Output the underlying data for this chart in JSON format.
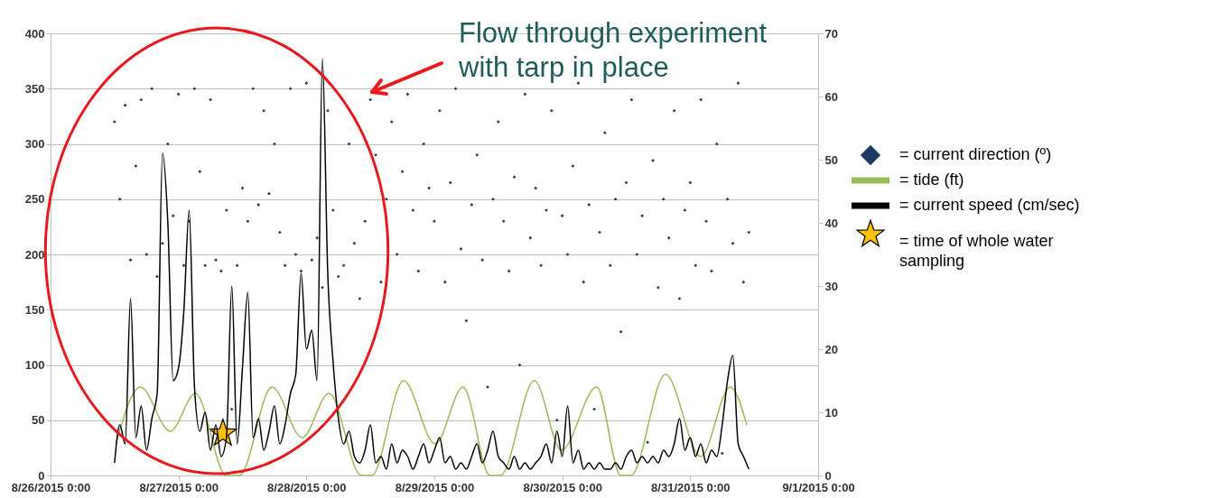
{
  "chart_data": {
    "type": "scatter",
    "annotations": [
      "Flow through experiment with tarp in place"
    ],
    "x": [
      "2015-08-26T12:00",
      "2015-08-26T13:00",
      "2015-08-26T14:00",
      "2015-08-26T15:00",
      "2015-08-26T16:00",
      "2015-08-26T17:00",
      "2015-08-26T18:00",
      "2015-08-26T19:00",
      "2015-08-26T20:00",
      "2015-08-26T21:00",
      "2015-08-26T22:00",
      "2015-08-26T23:00",
      "2015-08-27T00:00",
      "2015-08-27T01:00",
      "2015-08-27T02:00",
      "2015-08-27T03:00",
      "2015-08-27T04:00",
      "2015-08-27T05:00",
      "2015-08-27T06:00",
      "2015-08-27T07:00",
      "2015-08-27T08:00",
      "2015-08-27T09:00",
      "2015-08-27T10:00",
      "2015-08-27T11:00",
      "2015-08-27T12:00",
      "2015-08-27T13:00",
      "2015-08-27T14:00",
      "2015-08-27T15:00",
      "2015-08-27T16:00",
      "2015-08-27T17:00",
      "2015-08-27T18:00",
      "2015-08-27T19:00",
      "2015-08-27T20:00",
      "2015-08-27T21:00",
      "2015-08-27T22:00",
      "2015-08-27T23:00",
      "2015-08-28T00:00",
      "2015-08-28T01:00",
      "2015-08-28T02:00",
      "2015-08-28T03:00",
      "2015-08-28T04:00",
      "2015-08-28T05:00",
      "2015-08-28T06:00",
      "2015-08-28T07:00",
      "2015-08-28T08:00",
      "2015-08-28T09:00",
      "2015-08-28T10:00",
      "2015-08-28T11:00",
      "2015-08-28T12:00",
      "2015-08-28T13:00",
      "2015-08-28T14:00",
      "2015-08-28T15:00",
      "2015-08-28T16:00",
      "2015-08-28T17:00",
      "2015-08-28T18:00",
      "2015-08-28T19:00",
      "2015-08-28T20:00",
      "2015-08-28T21:00",
      "2015-08-28T22:00",
      "2015-08-28T23:00",
      "2015-08-29T00:00",
      "2015-08-29T01:00",
      "2015-08-29T02:00",
      "2015-08-29T03:00",
      "2015-08-29T04:00",
      "2015-08-29T05:00",
      "2015-08-29T06:00",
      "2015-08-29T07:00",
      "2015-08-29T08:00",
      "2015-08-29T09:00",
      "2015-08-29T10:00",
      "2015-08-29T11:00",
      "2015-08-29T12:00",
      "2015-08-29T13:00",
      "2015-08-29T14:00",
      "2015-08-29T15:00",
      "2015-08-29T16:00",
      "2015-08-29T17:00",
      "2015-08-29T18:00",
      "2015-08-29T19:00",
      "2015-08-29T20:00",
      "2015-08-29T21:00",
      "2015-08-29T22:00",
      "2015-08-29T23:00",
      "2015-08-30T00:00",
      "2015-08-30T01:00",
      "2015-08-30T02:00",
      "2015-08-30T03:00",
      "2015-08-30T04:00",
      "2015-08-30T05:00",
      "2015-08-30T06:00",
      "2015-08-30T07:00",
      "2015-08-30T08:00",
      "2015-08-30T09:00",
      "2015-08-30T10:00",
      "2015-08-30T11:00",
      "2015-08-30T12:00",
      "2015-08-30T13:00",
      "2015-08-30T14:00",
      "2015-08-30T15:00",
      "2015-08-30T16:00",
      "2015-08-30T17:00",
      "2015-08-30T18:00",
      "2015-08-30T19:00",
      "2015-08-30T20:00",
      "2015-08-30T21:00",
      "2015-08-30T22:00",
      "2015-08-30T23:00",
      "2015-08-31T00:00",
      "2015-08-31T01:00",
      "2015-08-31T02:00",
      "2015-08-31T03:00",
      "2015-08-31T04:00",
      "2015-08-31T05:00",
      "2015-08-31T06:00",
      "2015-08-31T07:00",
      "2015-08-31T08:00",
      "2015-08-31T09:00",
      "2015-08-31T10:00",
      "2015-08-31T11:00"
    ],
    "series": [
      {
        "name": "= current direction (º)",
        "type": "scatter",
        "marker": "diamond",
        "color": "#1f3864",
        "values": [
          320,
          250,
          335,
          195,
          280,
          340,
          200,
          350,
          180,
          210,
          300,
          235,
          345,
          190,
          230,
          350,
          275,
          190,
          340,
          195,
          185,
          240,
          60,
          190,
          260,
          230,
          350,
          245,
          330,
          255,
          300,
          220,
          190,
          350,
          200,
          185,
          355,
          195,
          215,
          170,
          330,
          240,
          180,
          190,
          300,
          210,
          160,
          230,
          340,
          290,
          175,
          250,
          320,
          200,
          275,
          345,
          240,
          185,
          300,
          260,
          230,
          330,
          175,
          265,
          350,
          205,
          140,
          245,
          290,
          195,
          80,
          250,
          320,
          230,
          185,
          270,
          100,
          345,
          215,
          260,
          190,
          240,
          330,
          50,
          235,
          200,
          280,
          355,
          175,
          245,
          60,
          220,
          310,
          190,
          250,
          130,
          265,
          340,
          200,
          235,
          30,
          285,
          170,
          250,
          215,
          330,
          160,
          240,
          265,
          190,
          340,
          230,
          185,
          300,
          20,
          250,
          210,
          355,
          175,
          220
        ]
      },
      {
        "name": "= tide (ft)",
        "type": "line",
        "axis": "y2",
        "color": "#9bbb59",
        "x": [
          "2015-08-26T12:15",
          "2015-08-26T16:50",
          "2015-08-26T22:28",
          "2015-08-27T03:10",
          "2015-08-27T08:58",
          "2015-08-27T11:26",
          "2015-08-27T17:33",
          "2015-08-27T23:11",
          "2015-08-28T04:15",
          "2015-08-28T10:17",
          "2015-08-28T12:15",
          "2015-08-28T18:13",
          "2015-08-29T00:10",
          "2015-08-29T05:23",
          "2015-08-29T10:26",
          "2015-08-29T12:25",
          "2015-08-29T18:46",
          "2015-08-29T23:50",
          "2015-08-30T06:27",
          "2015-08-30T10:57",
          "2015-08-30T12:53",
          "2015-08-30T19:22",
          "2015-08-31T01:58",
          "2015-08-31T07:31",
          "2015-08-31T10:37"
        ],
        "values": [
          5,
          14,
          7,
          13,
          0,
          0,
          14,
          6,
          13,
          0,
          0,
          15,
          5,
          14,
          0,
          0,
          15,
          4,
          14,
          0,
          0,
          16,
          3,
          14,
          8
        ]
      },
      {
        "name": "= current speed (cm/sec)",
        "type": "line",
        "axis": "y2",
        "color": "#000000",
        "values": [
          2,
          8,
          5,
          28,
          6,
          11,
          4,
          9,
          13,
          51,
          40,
          15,
          17,
          26,
          42,
          14,
          7,
          10,
          4,
          8,
          3,
          6,
          30,
          5,
          17,
          29,
          6,
          9,
          4,
          7,
          11,
          5,
          8,
          13,
          16,
          32,
          20,
          23,
          15,
          66,
          32,
          18,
          9,
          5,
          7,
          3,
          2,
          4,
          8,
          2,
          3,
          1,
          5,
          2,
          4,
          3,
          1,
          3,
          5,
          2,
          4,
          6,
          2,
          3,
          1,
          2,
          1,
          3,
          5,
          2,
          4,
          7,
          3,
          2,
          1,
          3,
          1,
          2,
          1,
          2,
          3,
          5,
          2,
          7,
          3,
          11,
          2,
          4,
          1,
          2,
          1,
          2,
          1,
          1,
          2,
          1,
          3,
          4,
          2,
          3,
          2,
          3,
          2,
          4,
          3,
          5,
          9,
          4,
          6,
          3,
          5,
          2,
          4,
          3,
          8,
          15,
          19,
          5,
          3,
          1
        ]
      },
      {
        "name": "= time of whole water sampling",
        "type": "scatter",
        "marker": "star",
        "color": "#ffc000",
        "x": [
          "2015-08-27T08:20"
        ],
        "values": [
          38
        ]
      }
    ],
    "xlim": [
      "2015-08-26T00:00",
      "2015-09-01T00:00"
    ],
    "xticks": [
      {
        "value": "2015-08-26T00:00",
        "label": "8/26/2015 0:00"
      },
      {
        "value": "2015-08-27T00:00",
        "label": "8/27/2015 0:00"
      },
      {
        "value": "2015-08-28T00:00",
        "label": "8/28/2015 0:00"
      },
      {
        "value": "2015-08-29T00:00",
        "label": "8/29/2015 0:00"
      },
      {
        "value": "2015-08-30T00:00",
        "label": "8/30/2015 0:00"
      },
      {
        "value": "2015-08-31T00:00",
        "label": "8/31/2015 0:00"
      },
      {
        "value": "2015-09-01T00:00",
        "label": "9/1/2015 0:00"
      }
    ],
    "ylim": [
      0,
      400
    ],
    "yticks": [
      0,
      50,
      100,
      150,
      200,
      250,
      300,
      350,
      400
    ],
    "y2lim": [
      0,
      70
    ],
    "y2ticks": [
      0,
      10,
      20,
      30,
      40,
      50,
      60,
      70
    ],
    "grid": "y",
    "legend": "right"
  }
}
